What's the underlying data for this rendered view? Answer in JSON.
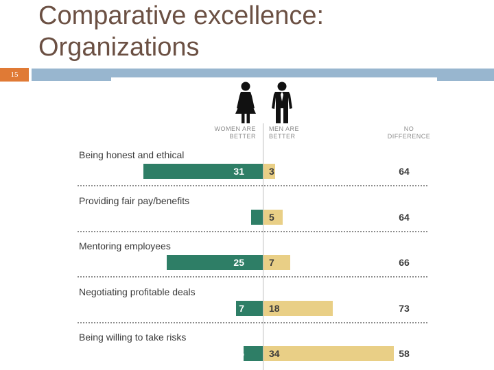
{
  "slide": {
    "title": "Comparative excellence: Organizations",
    "number": "15"
  },
  "chart_data": {
    "type": "bar",
    "orientation": "horizontal-diverging",
    "title": "",
    "categories": [
      "Being honest and ethical",
      "Providing fair pay/benefits",
      "Mentoring employees",
      "Negotiating profitable deals",
      "Being willing to take risks"
    ],
    "series": [
      {
        "name": "WOMEN ARE BETTER",
        "values": [
          31,
          3,
          25,
          7,
          5
        ],
        "color": "#2e7e66"
      },
      {
        "name": "MEN ARE BETTER",
        "values": [
          3,
          5,
          7,
          18,
          34
        ],
        "color": "#e9cf86"
      },
      {
        "name": "NO DIFFERENCE",
        "values": [
          64,
          64,
          66,
          73,
          58
        ]
      }
    ],
    "column_headers": {
      "women": "WOMEN ARE\nBETTER",
      "men": "MEN ARE\nBETTER",
      "none": "NO\nDIFFERENCE"
    },
    "xlim": [
      0,
      40
    ]
  },
  "colors": {
    "title": "#6b5043",
    "accent": "#e07a35",
    "rule": "#98b6cf",
    "women": "#2e7e66",
    "men": "#e9cf86"
  }
}
